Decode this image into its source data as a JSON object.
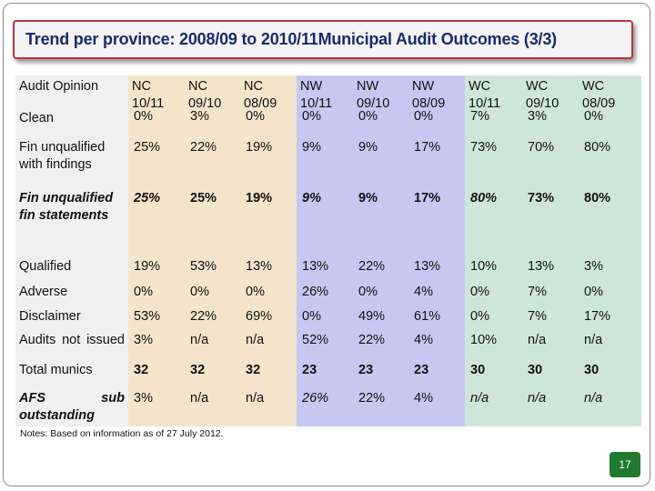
{
  "title": "Trend per province: 2008/09 to 2010/11Municipal Audit Outcomes (3/3)",
  "note": "Notes: Based on information as of 27 July 2012.",
  "page_number": "17",
  "colors": {
    "nc": "#f4e4cc",
    "nw": "#c6c8f2",
    "wc": "#cee6da",
    "title_border": "#c0303a",
    "title_text": "#1a2a6e",
    "page_badge": "#1f7a2e"
  },
  "table": {
    "corner": "Audit Opinion",
    "columns": [
      {
        "line1": "NC",
        "line2": "10/11"
      },
      {
        "line1": "NC",
        "line2": "09/10"
      },
      {
        "line1": "NC",
        "line2": "08/09"
      },
      {
        "line1": "NW",
        "line2": "10/11"
      },
      {
        "line1": "NW",
        "line2": "09/10"
      },
      {
        "line1": "NW",
        "line2": "08/09"
      },
      {
        "line1": "WC",
        "line2": "10/11"
      },
      {
        "line1": "WC",
        "line2": "09/10"
      },
      {
        "line1": "WC",
        "line2": "08/09"
      }
    ],
    "rows": [
      {
        "label": "Clean",
        "values": [
          "0%",
          "3%",
          "0%",
          "0%",
          "0%",
          "0%",
          "7%",
          "3%",
          "0%"
        ]
      },
      {
        "label": "Fin unqualified with findings",
        "values": [
          "25%",
          "22%",
          "19%",
          "9%",
          "9%",
          "17%",
          "73%",
          "70%",
          "80%"
        ]
      },
      {
        "label": "Fin unqualified fin statements",
        "values": [
          "25%",
          "25%",
          "19%",
          "9%",
          "9%",
          "17%",
          "80%",
          "73%",
          "80%"
        ]
      },
      {
        "label": "Qualified",
        "values": [
          "19%",
          "53%",
          "13%",
          "13%",
          "22%",
          "13%",
          "10%",
          "13%",
          "3%"
        ]
      },
      {
        "label": "Adverse",
        "values": [
          "0%",
          "0%",
          "0%",
          "26%",
          "0%",
          "4%",
          "0%",
          "7%",
          "0%"
        ]
      },
      {
        "label": "Disclaimer",
        "values": [
          "53%",
          "22%",
          "69%",
          "0%",
          "49%",
          "61%",
          "0%",
          "7%",
          "17%"
        ]
      },
      {
        "label": "Audits not issued",
        "values": [
          "3%",
          "n/a",
          "n/a",
          "52%",
          "22%",
          "4%",
          "10%",
          "n/a",
          "n/a"
        ]
      },
      {
        "label": "Total munics",
        "values": [
          "32",
          "32",
          "32",
          "23",
          "23",
          "23",
          "30",
          "30",
          "30"
        ]
      },
      {
        "label": "AFS sub outstanding",
        "values": [
          "3%",
          "n/a",
          "n/a",
          "26%",
          "22%",
          "4%",
          "n/a",
          "n/a",
          "n/a"
        ]
      }
    ]
  }
}
